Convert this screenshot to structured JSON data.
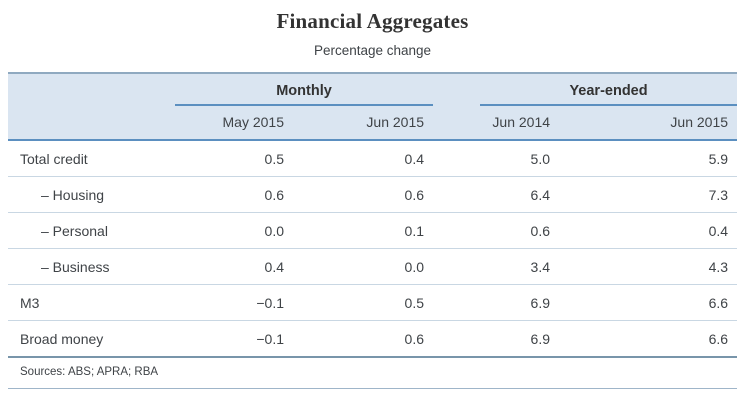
{
  "title": "Financial Aggregates",
  "subtitle": "Percentage change",
  "table": {
    "groups": [
      {
        "label": "Monthly"
      },
      {
        "label": "Year-ended"
      }
    ],
    "columns": [
      "May 2015",
      "Jun 2015",
      "Jun 2014",
      "Jun 2015"
    ],
    "rows": [
      {
        "label": "Total credit",
        "values": [
          "0.5",
          "0.4",
          "5.0",
          "5.9"
        ]
      },
      {
        "label": "– Housing",
        "values": [
          "0.6",
          "0.6",
          "6.4",
          "7.3"
        ]
      },
      {
        "label": "– Personal",
        "values": [
          "0.0",
          "0.1",
          "0.6",
          "0.4"
        ]
      },
      {
        "label": "– Business",
        "values": [
          "0.4",
          "0.0",
          "3.4",
          "4.3"
        ]
      },
      {
        "label": "M3",
        "values": [
          "−0.1",
          "0.5",
          "6.9",
          "6.6"
        ]
      },
      {
        "label": "Broad money",
        "values": [
          "−0.1",
          "0.6",
          "6.9",
          "6.6"
        ]
      }
    ],
    "footnote": "Sources: ABS; APRA; RBA"
  },
  "colors": {
    "header_fill": "#dae5f1",
    "accent_blue": "#5b8fc0",
    "top_border": "#8fa9c0",
    "row_line": "#c9d7e3",
    "strong_line": "#7895aa",
    "text": "#3f4347"
  }
}
